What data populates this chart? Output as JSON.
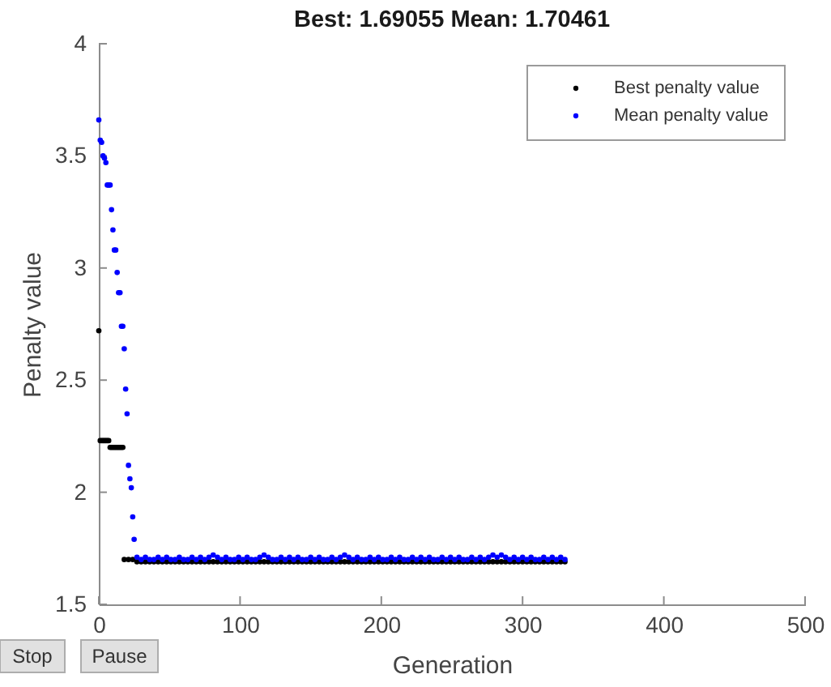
{
  "chart_data": {
    "type": "scatter",
    "title": "Best: 1.69055 Mean: 1.70461",
    "xlabel": "Generation",
    "ylabel": "Penalty value",
    "xlim": [
      0,
      500
    ],
    "xticks": [
      0,
      100,
      200,
      300,
      400,
      500
    ],
    "ylim": [
      1.5,
      4
    ],
    "yticks": [
      1.5,
      2,
      2.5,
      3,
      3.5,
      4
    ],
    "grid": false,
    "legend": "top right",
    "marker": "circle",
    "annotations": [
      "Stop",
      "Pause"
    ],
    "series": [
      {
        "name": "Best penalty value",
        "color": "#000000",
        "x": [
          0,
          1,
          2,
          3,
          4,
          5,
          6,
          7,
          8,
          9,
          10,
          11,
          12,
          13,
          14,
          15,
          16,
          17,
          18,
          21,
          24,
          27,
          30,
          33,
          36,
          39,
          42,
          45,
          48,
          51,
          54,
          57,
          60,
          63,
          66,
          69,
          72,
          75,
          78,
          81,
          84,
          87,
          90,
          93,
          96,
          99,
          102,
          105,
          108,
          111,
          114,
          117,
          120,
          123,
          126,
          129,
          132,
          135,
          138,
          141,
          144,
          147,
          150,
          153,
          156,
          159,
          162,
          165,
          168,
          171,
          174,
          177,
          180,
          183,
          186,
          189,
          192,
          195,
          198,
          201,
          204,
          207,
          210,
          213,
          216,
          219,
          222,
          225,
          228,
          231,
          234,
          237,
          240,
          243,
          246,
          249,
          252,
          255,
          258,
          261,
          264,
          267,
          270,
          273,
          276,
          279,
          282,
          285,
          288,
          291,
          294,
          297,
          300,
          303,
          306,
          309,
          312,
          315,
          318,
          321,
          324,
          327,
          330
        ],
        "values": [
          2.72,
          2.23,
          2.23,
          2.23,
          2.23,
          2.23,
          2.23,
          2.23,
          2.2,
          2.2,
          2.2,
          2.2,
          2.2,
          2.2,
          2.2,
          2.2,
          2.2,
          2.2,
          1.7,
          1.7,
          1.7,
          1.69,
          1.69,
          1.69,
          1.69,
          1.69,
          1.69,
          1.69,
          1.69,
          1.69,
          1.69,
          1.69,
          1.69,
          1.69,
          1.69,
          1.69,
          1.69,
          1.69,
          1.69,
          1.69,
          1.69,
          1.69,
          1.69,
          1.69,
          1.69,
          1.69,
          1.69,
          1.69,
          1.69,
          1.69,
          1.69,
          1.69,
          1.69,
          1.69,
          1.69,
          1.69,
          1.69,
          1.69,
          1.69,
          1.69,
          1.69,
          1.69,
          1.69,
          1.69,
          1.69,
          1.69,
          1.69,
          1.69,
          1.69,
          1.69,
          1.69,
          1.69,
          1.69,
          1.69,
          1.69,
          1.69,
          1.69,
          1.69,
          1.69,
          1.69,
          1.69,
          1.69,
          1.69,
          1.69,
          1.69,
          1.69,
          1.69,
          1.69,
          1.69,
          1.69,
          1.69,
          1.69,
          1.69,
          1.69,
          1.69,
          1.69,
          1.69,
          1.69,
          1.69,
          1.69,
          1.69,
          1.69,
          1.69,
          1.69,
          1.69,
          1.69,
          1.69,
          1.69,
          1.69,
          1.69,
          1.69,
          1.69,
          1.69,
          1.69,
          1.69,
          1.69,
          1.69,
          1.69,
          1.69,
          1.69,
          1.69,
          1.69,
          1.69
        ]
      },
      {
        "name": "Mean penalty value",
        "color": "#0000ff",
        "x": [
          0,
          1,
          2,
          3,
          4,
          5,
          6,
          7,
          8,
          9,
          10,
          11,
          12,
          13,
          14,
          15,
          16,
          17,
          18,
          19,
          20,
          21,
          22,
          23,
          24,
          25,
          27,
          30,
          33,
          36,
          39,
          42,
          45,
          48,
          51,
          54,
          57,
          60,
          63,
          66,
          69,
          72,
          75,
          78,
          81,
          84,
          87,
          90,
          93,
          96,
          99,
          102,
          105,
          108,
          111,
          114,
          117,
          120,
          123,
          126,
          129,
          132,
          135,
          138,
          141,
          144,
          147,
          150,
          153,
          156,
          159,
          162,
          165,
          168,
          171,
          174,
          177,
          180,
          183,
          186,
          189,
          192,
          195,
          198,
          201,
          204,
          207,
          210,
          213,
          216,
          219,
          222,
          225,
          228,
          231,
          234,
          237,
          240,
          243,
          246,
          249,
          252,
          255,
          258,
          261,
          264,
          267,
          270,
          273,
          276,
          279,
          282,
          285,
          288,
          291,
          294,
          297,
          300,
          303,
          306,
          309,
          312,
          315,
          318,
          321,
          324,
          327,
          330
        ],
        "values": [
          3.66,
          3.57,
          3.56,
          3.5,
          3.49,
          3.47,
          3.37,
          3.37,
          3.37,
          3.26,
          3.17,
          3.08,
          3.08,
          2.98,
          2.89,
          2.89,
          2.74,
          2.74,
          2.64,
          2.46,
          2.35,
          2.12,
          2.06,
          2.02,
          1.89,
          1.79,
          1.71,
          1.7,
          1.71,
          1.7,
          1.7,
          1.71,
          1.7,
          1.71,
          1.7,
          1.7,
          1.71,
          1.7,
          1.7,
          1.71,
          1.7,
          1.71,
          1.7,
          1.71,
          1.72,
          1.71,
          1.7,
          1.71,
          1.7,
          1.7,
          1.71,
          1.7,
          1.71,
          1.7,
          1.7,
          1.71,
          1.72,
          1.71,
          1.7,
          1.7,
          1.71,
          1.7,
          1.71,
          1.7,
          1.71,
          1.7,
          1.7,
          1.71,
          1.7,
          1.71,
          1.7,
          1.7,
          1.71,
          1.7,
          1.71,
          1.72,
          1.71,
          1.7,
          1.71,
          1.7,
          1.7,
          1.71,
          1.7,
          1.71,
          1.7,
          1.7,
          1.71,
          1.7,
          1.71,
          1.7,
          1.7,
          1.71,
          1.7,
          1.71,
          1.7,
          1.71,
          1.7,
          1.7,
          1.71,
          1.7,
          1.71,
          1.7,
          1.71,
          1.7,
          1.7,
          1.71,
          1.7,
          1.71,
          1.7,
          1.71,
          1.72,
          1.71,
          1.72,
          1.71,
          1.7,
          1.71,
          1.7,
          1.71,
          1.7,
          1.71,
          1.7,
          1.7,
          1.71,
          1.7,
          1.71,
          1.7,
          1.71,
          1.7
        ]
      }
    ]
  }
}
